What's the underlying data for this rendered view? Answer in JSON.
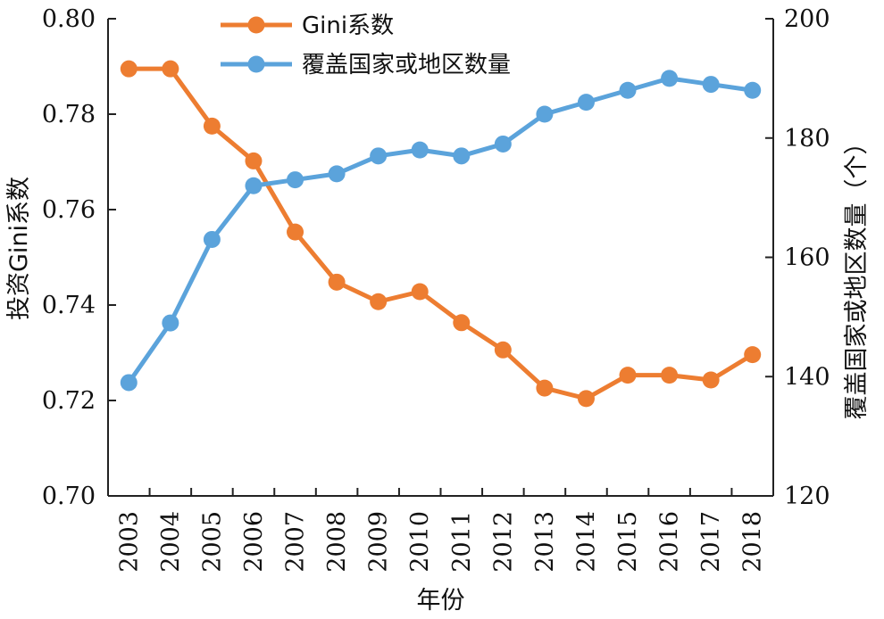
{
  "chart_data": {
    "type": "line",
    "xlabel": "年份",
    "ylabel_left": "投资Gini系数",
    "ylabel_right": "覆盖国家或地区数量（个）",
    "x": [
      "2003",
      "2004",
      "2005",
      "2006",
      "2007",
      "2008",
      "2009",
      "2010",
      "2011",
      "2012",
      "2013",
      "2014",
      "2015",
      "2016",
      "2017",
      "2018"
    ],
    "ylim_left": [
      0.7,
      0.8
    ],
    "yticks_left": [
      "0.70",
      "0.72",
      "0.74",
      "0.76",
      "0.78",
      "0.80"
    ],
    "ylim_right": [
      120,
      200
    ],
    "yticks_right": [
      "120",
      "140",
      "160",
      "180",
      "200"
    ],
    "legend_position": "top-center",
    "grid": false,
    "series": [
      {
        "name": "Gini系数",
        "axis": "left",
        "color": "#ED7D31",
        "values": [
          0.7895,
          0.7895,
          0.7775,
          0.7702,
          0.7553,
          0.7448,
          0.7407,
          0.7428,
          0.7363,
          0.7306,
          0.7226,
          0.7204,
          0.7253,
          0.7253,
          0.7243,
          0.7296
        ]
      },
      {
        "name": "覆盖国家或地区数量",
        "axis": "right",
        "color": "#5BA3DB",
        "values": [
          139,
          149,
          163,
          172,
          173,
          174,
          177,
          178,
          177,
          179,
          184,
          186,
          188,
          190,
          189,
          188
        ]
      }
    ]
  }
}
